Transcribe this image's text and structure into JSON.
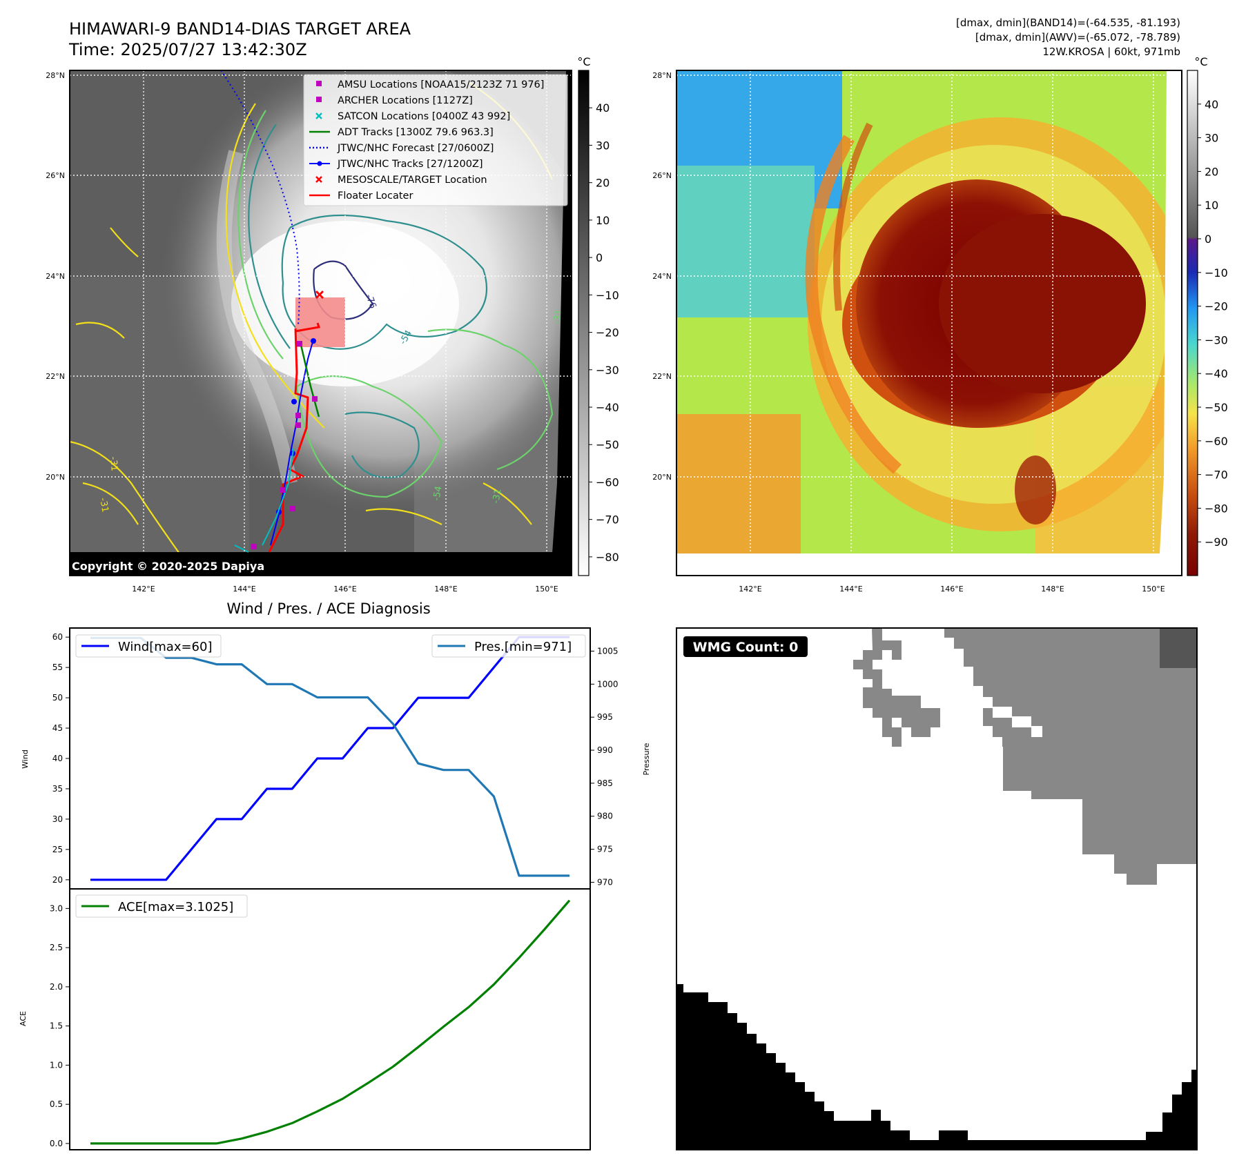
{
  "header": {
    "title": "HIMAWARI-9 BAND14-DIAS TARGET AREA",
    "time": "Time: 2025/07/27 13:42:30Z",
    "dmax_band14": "[dmax, dmin](BAND14)=(-64.535, -81.193)",
    "dmax_awv": "[dmax, dmin](AWV)=(-65.072, -78.789)",
    "storm": "12W.KROSA | 60kt, 971mb"
  },
  "map": {
    "lon_ticks": [
      "142°E",
      "144°E",
      "146°E",
      "148°E",
      "150°E"
    ],
    "lat_ticks": [
      "28°N",
      "26°N",
      "24°N",
      "22°N",
      "20°N"
    ],
    "lon_range": [
      140.6,
      150.6
    ],
    "lat_range": [
      18.1,
      28.05
    ],
    "copyright": "Copyright © 2020-2025 Dapiya",
    "contour_labels": [
      "-76",
      "-54",
      "-31",
      "-31",
      "-54",
      "-31",
      "-31"
    ]
  },
  "legend": {
    "items": [
      {
        "label": "AMSU Locations [NOAA15/2123Z 71 976]",
        "color": "#bf00bf",
        "icon": "square-marker"
      },
      {
        "label": "ARCHER Locations [1127Z]",
        "color": "#bf00bf",
        "icon": "square-marker"
      },
      {
        "label": "SATCON Locations [0400Z 43 992]",
        "color": "#00bfbf",
        "icon": "x-marker"
      },
      {
        "label": "ADT Tracks [1300Z 79.6 963.3]",
        "color": "#008000",
        "icon": "line"
      },
      {
        "label": "JTWC/NHC Forecast [27/0600Z]",
        "color": "#0000ff",
        "icon": "dotted-line"
      },
      {
        "label": "JTWC/NHC Tracks [27/1200Z]",
        "color": "#0000ff",
        "icon": "line-dot"
      },
      {
        "label": "MESOSCALE/TARGET Location",
        "color": "#ff0000",
        "icon": "x-marker"
      },
      {
        "label": "Floater Locater",
        "color": "#ff0000",
        "icon": "line"
      }
    ]
  },
  "colorbar_left": {
    "unit": "°C",
    "ticks": [
      "40",
      "30",
      "20",
      "10",
      "0",
      "−10",
      "−20",
      "−30",
      "−40",
      "−50",
      "−60",
      "−70",
      "−80"
    ],
    "range": [
      -85,
      50
    ]
  },
  "colorbar_right": {
    "unit": "°C",
    "ticks": [
      "40",
      "30",
      "20",
      "10",
      "0",
      "−10",
      "−20",
      "−30",
      "−40",
      "−50",
      "−60",
      "−70",
      "−80",
      "−90"
    ],
    "range": [
      -100,
      50
    ]
  },
  "chart_data": [
    {
      "type": "line",
      "title": "Wind / Pres. / ACE Diagnosis",
      "ylabel": "Wind",
      "ylabel_right": "Pressure",
      "ylim": [
        18.5,
        61.5
      ],
      "ylim_right": [
        969,
        1008.5
      ],
      "yticks": [
        "20",
        "25",
        "30",
        "35",
        "40",
        "45",
        "50",
        "55",
        "60"
      ],
      "yticks_right": [
        "970",
        "975",
        "980",
        "985",
        "990",
        "995",
        "1000",
        "1005"
      ],
      "x": [
        0,
        1,
        2,
        3,
        4,
        5,
        6,
        7,
        8,
        9,
        10,
        11,
        12,
        13,
        14,
        15,
        16,
        17,
        18,
        19
      ],
      "series": [
        {
          "name": "Wind[max=60]",
          "color": "#0000ff",
          "axis": "left",
          "values": [
            20,
            20,
            20,
            20,
            25,
            30,
            30,
            35,
            35,
            40,
            40,
            45,
            45,
            50,
            50,
            50,
            55,
            60,
            60,
            60
          ]
        },
        {
          "name": "Pres.[min=971]",
          "color": "#1f77b4",
          "axis": "right",
          "values": [
            1007,
            1007,
            1007,
            1004,
            1004,
            1003,
            1003,
            1000,
            1000,
            998,
            998,
            998,
            994,
            988,
            987,
            987,
            983,
            971,
            971,
            971
          ]
        }
      ]
    },
    {
      "type": "line",
      "ylabel": "ACE",
      "ylim": [
        -0.08,
        3.25
      ],
      "yticks": [
        "0.0",
        "0.5",
        "1.0",
        "1.5",
        "2.0",
        "2.5",
        "3.0"
      ],
      "x": [
        0,
        1,
        2,
        3,
        4,
        5,
        6,
        7,
        8,
        9,
        10,
        11,
        12,
        13,
        14,
        15,
        16,
        17,
        18,
        19
      ],
      "series": [
        {
          "name": "ACE[max=3.1025]",
          "color": "#008000",
          "values": [
            0,
            0,
            0,
            0,
            0,
            0,
            0.0625,
            0.15,
            0.26,
            0.41,
            0.57,
            0.77,
            0.98,
            1.23,
            1.49,
            1.74,
            2.03,
            2.37,
            2.73,
            3.1025
          ]
        }
      ]
    }
  ],
  "wmg": {
    "label": "WMG Count: 0"
  }
}
